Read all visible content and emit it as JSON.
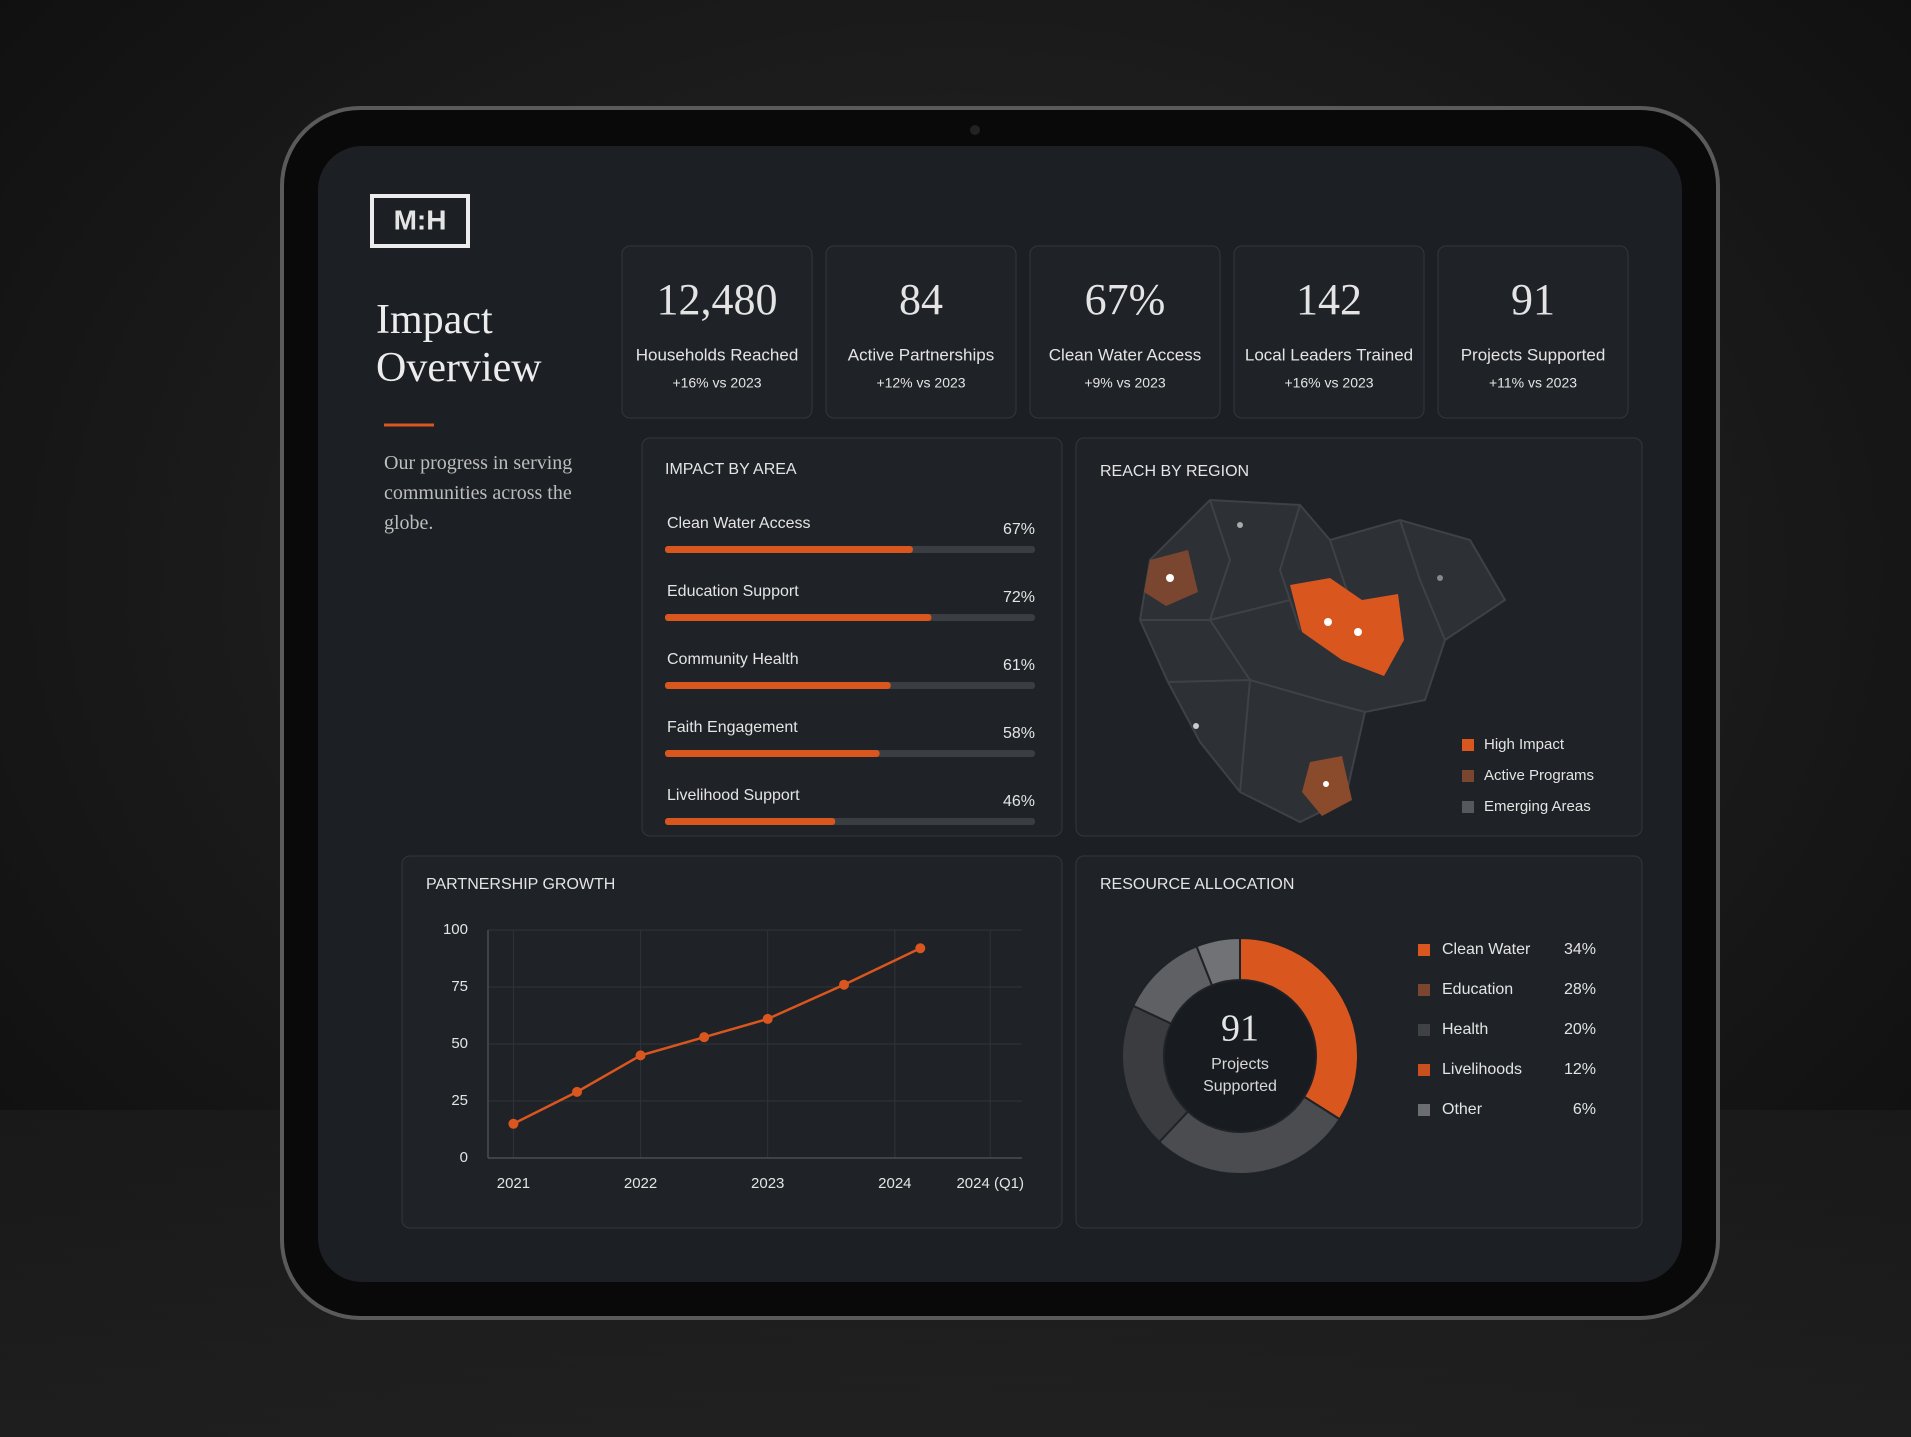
{
  "logo": "M:H",
  "header": {
    "title": "Impact Overview",
    "subtitle": "Our progress in serving communities across the globe."
  },
  "kpis": [
    {
      "value": "12,480",
      "label": "Households Reached",
      "change": "+16% vs 2023"
    },
    {
      "value": "84",
      "label": "Active Partnerships",
      "change": "+12% vs 2023"
    },
    {
      "value": "67%",
      "label": "Clean Water Access",
      "change": "+9% vs 2023"
    },
    {
      "value": "142",
      "label": "Local Leaders Trained",
      "change": "+16% vs 2023"
    },
    {
      "value": "91",
      "label": "Projects Supported",
      "change": "+11% vs 2023"
    }
  ],
  "region_map": {
    "title": "REACH BY REGION",
    "legend": [
      {
        "name": "High Impact",
        "color": "#d9561f"
      },
      {
        "name": "Active Programs",
        "color": "#7a4630"
      },
      {
        "name": "Emerging Areas",
        "color": "#55585d"
      }
    ]
  },
  "chart_data": [
    {
      "type": "bar",
      "title": "IMPACT BY AREA",
      "categories": [
        "Clean Water Access",
        "Education Support",
        "Community Health",
        "Faith Engagement",
        "Livelihood Support"
      ],
      "values": [
        67,
        72,
        61,
        58,
        46
      ],
      "value_labels": [
        "67%",
        "72%",
        "61%",
        "58%",
        "46%"
      ],
      "xlim": [
        0,
        100
      ],
      "color": "#d9561f"
    },
    {
      "type": "line",
      "title": "PARTNERSHIP GROWTH",
      "x": [
        2021,
        2021.5,
        2022,
        2022.5,
        2023,
        2023.6,
        2024.2
      ],
      "values": [
        15,
        29,
        45,
        53,
        61,
        76,
        92
      ],
      "xlim": [
        2020.8,
        2025
      ],
      "xticks": [
        2021,
        2022,
        2023,
        2024,
        {
          "value": 2024.75,
          "label": "2024 (Q1)"
        }
      ],
      "ylim": [
        0,
        100
      ],
      "yticks": [
        0,
        25,
        50,
        75,
        100
      ],
      "grid": true,
      "color": "#d9561f"
    },
    {
      "type": "pie",
      "title": "RESOURCE ALLOCATION",
      "categories": [
        "Clean Water",
        "Education",
        "Health",
        "Livelihoods",
        "Other"
      ],
      "values": [
        34,
        28,
        20,
        12,
        6
      ],
      "value_labels": [
        "34%",
        "28%",
        "20%",
        "12%",
        "6%"
      ],
      "colors": [
        "#d9561f",
        "#4a4c50",
        "#3a3c40",
        "#5e6064",
        "#707276"
      ],
      "legend_colors": [
        "#d9561f",
        "#7a4630",
        "#3f4145",
        "#c8501e",
        "#6b6d70"
      ],
      "center_value": "91",
      "center_label": "Projects Supported"
    }
  ]
}
